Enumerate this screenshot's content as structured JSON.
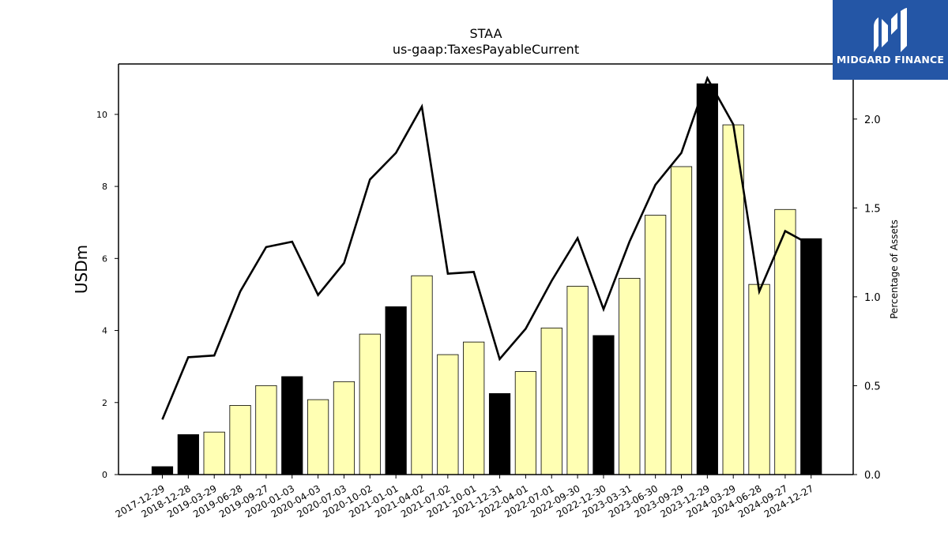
{
  "logo": {
    "text": "MIDGARD FINANCE",
    "icon": "midgard-m-icon",
    "bg_color": "#2456a6"
  },
  "chart_data": {
    "type": "bar",
    "title": "STAA",
    "subtitle": "us-gaap:TaxesPayableCurrent",
    "ylabel": "USDm",
    "y2label": "Percentage of Assets",
    "ylim": [
      0,
      11.4
    ],
    "y2lim": [
      0,
      2.31
    ],
    "yticks": [
      "0",
      "2",
      "4",
      "6",
      "8",
      "10"
    ],
    "y2ticks": [
      "0.0",
      "0.5",
      "1.0",
      "1.5",
      "2.0"
    ],
    "grid": false,
    "categories": [
      "2017-12-29",
      "2018-12-28",
      "2019-03-29",
      "2019-06-28",
      "2019-09-27",
      "2020-01-03",
      "2020-04-03",
      "2020-07-03",
      "2020-10-02",
      "2021-01-01",
      "2021-04-02",
      "2021-07-02",
      "2021-10-01",
      "2021-12-31",
      "2022-04-01",
      "2022-07-01",
      "2022-09-30",
      "2022-12-30",
      "2023-03-31",
      "2023-06-30",
      "2023-09-29",
      "2023-12-29",
      "2024-03-29",
      "2024-06-28",
      "2024-09-27",
      "2024-12-27"
    ],
    "series": [
      {
        "type": "bar",
        "values": [
          0.22,
          1.11,
          1.18,
          1.92,
          2.47,
          2.72,
          2.08,
          2.58,
          3.9,
          4.66,
          5.52,
          3.33,
          3.68,
          2.25,
          2.86,
          4.07,
          5.23,
          3.86,
          5.45,
          7.2,
          8.55,
          10.85,
          9.71,
          5.28,
          7.36,
          6.55
        ]
      },
      {
        "type": "line",
        "axis": "right",
        "values": [
          0.31,
          0.66,
          0.67,
          1.03,
          1.28,
          1.31,
          1.01,
          1.19,
          1.66,
          1.81,
          2.07,
          1.13,
          1.14,
          0.65,
          0.82,
          1.09,
          1.33,
          0.93,
          1.31,
          1.63,
          1.81,
          2.23,
          1.97,
          1.03,
          1.37,
          1.29
        ]
      }
    ],
    "bar_highlight": [
      true,
      true,
      false,
      false,
      false,
      true,
      false,
      false,
      false,
      true,
      false,
      false,
      false,
      true,
      false,
      false,
      false,
      true,
      false,
      false,
      false,
      true,
      false,
      false,
      false,
      true
    ],
    "colors": {
      "bar_dark": "#000000",
      "bar_light": "#ffffb3",
      "line": "#000000"
    }
  }
}
